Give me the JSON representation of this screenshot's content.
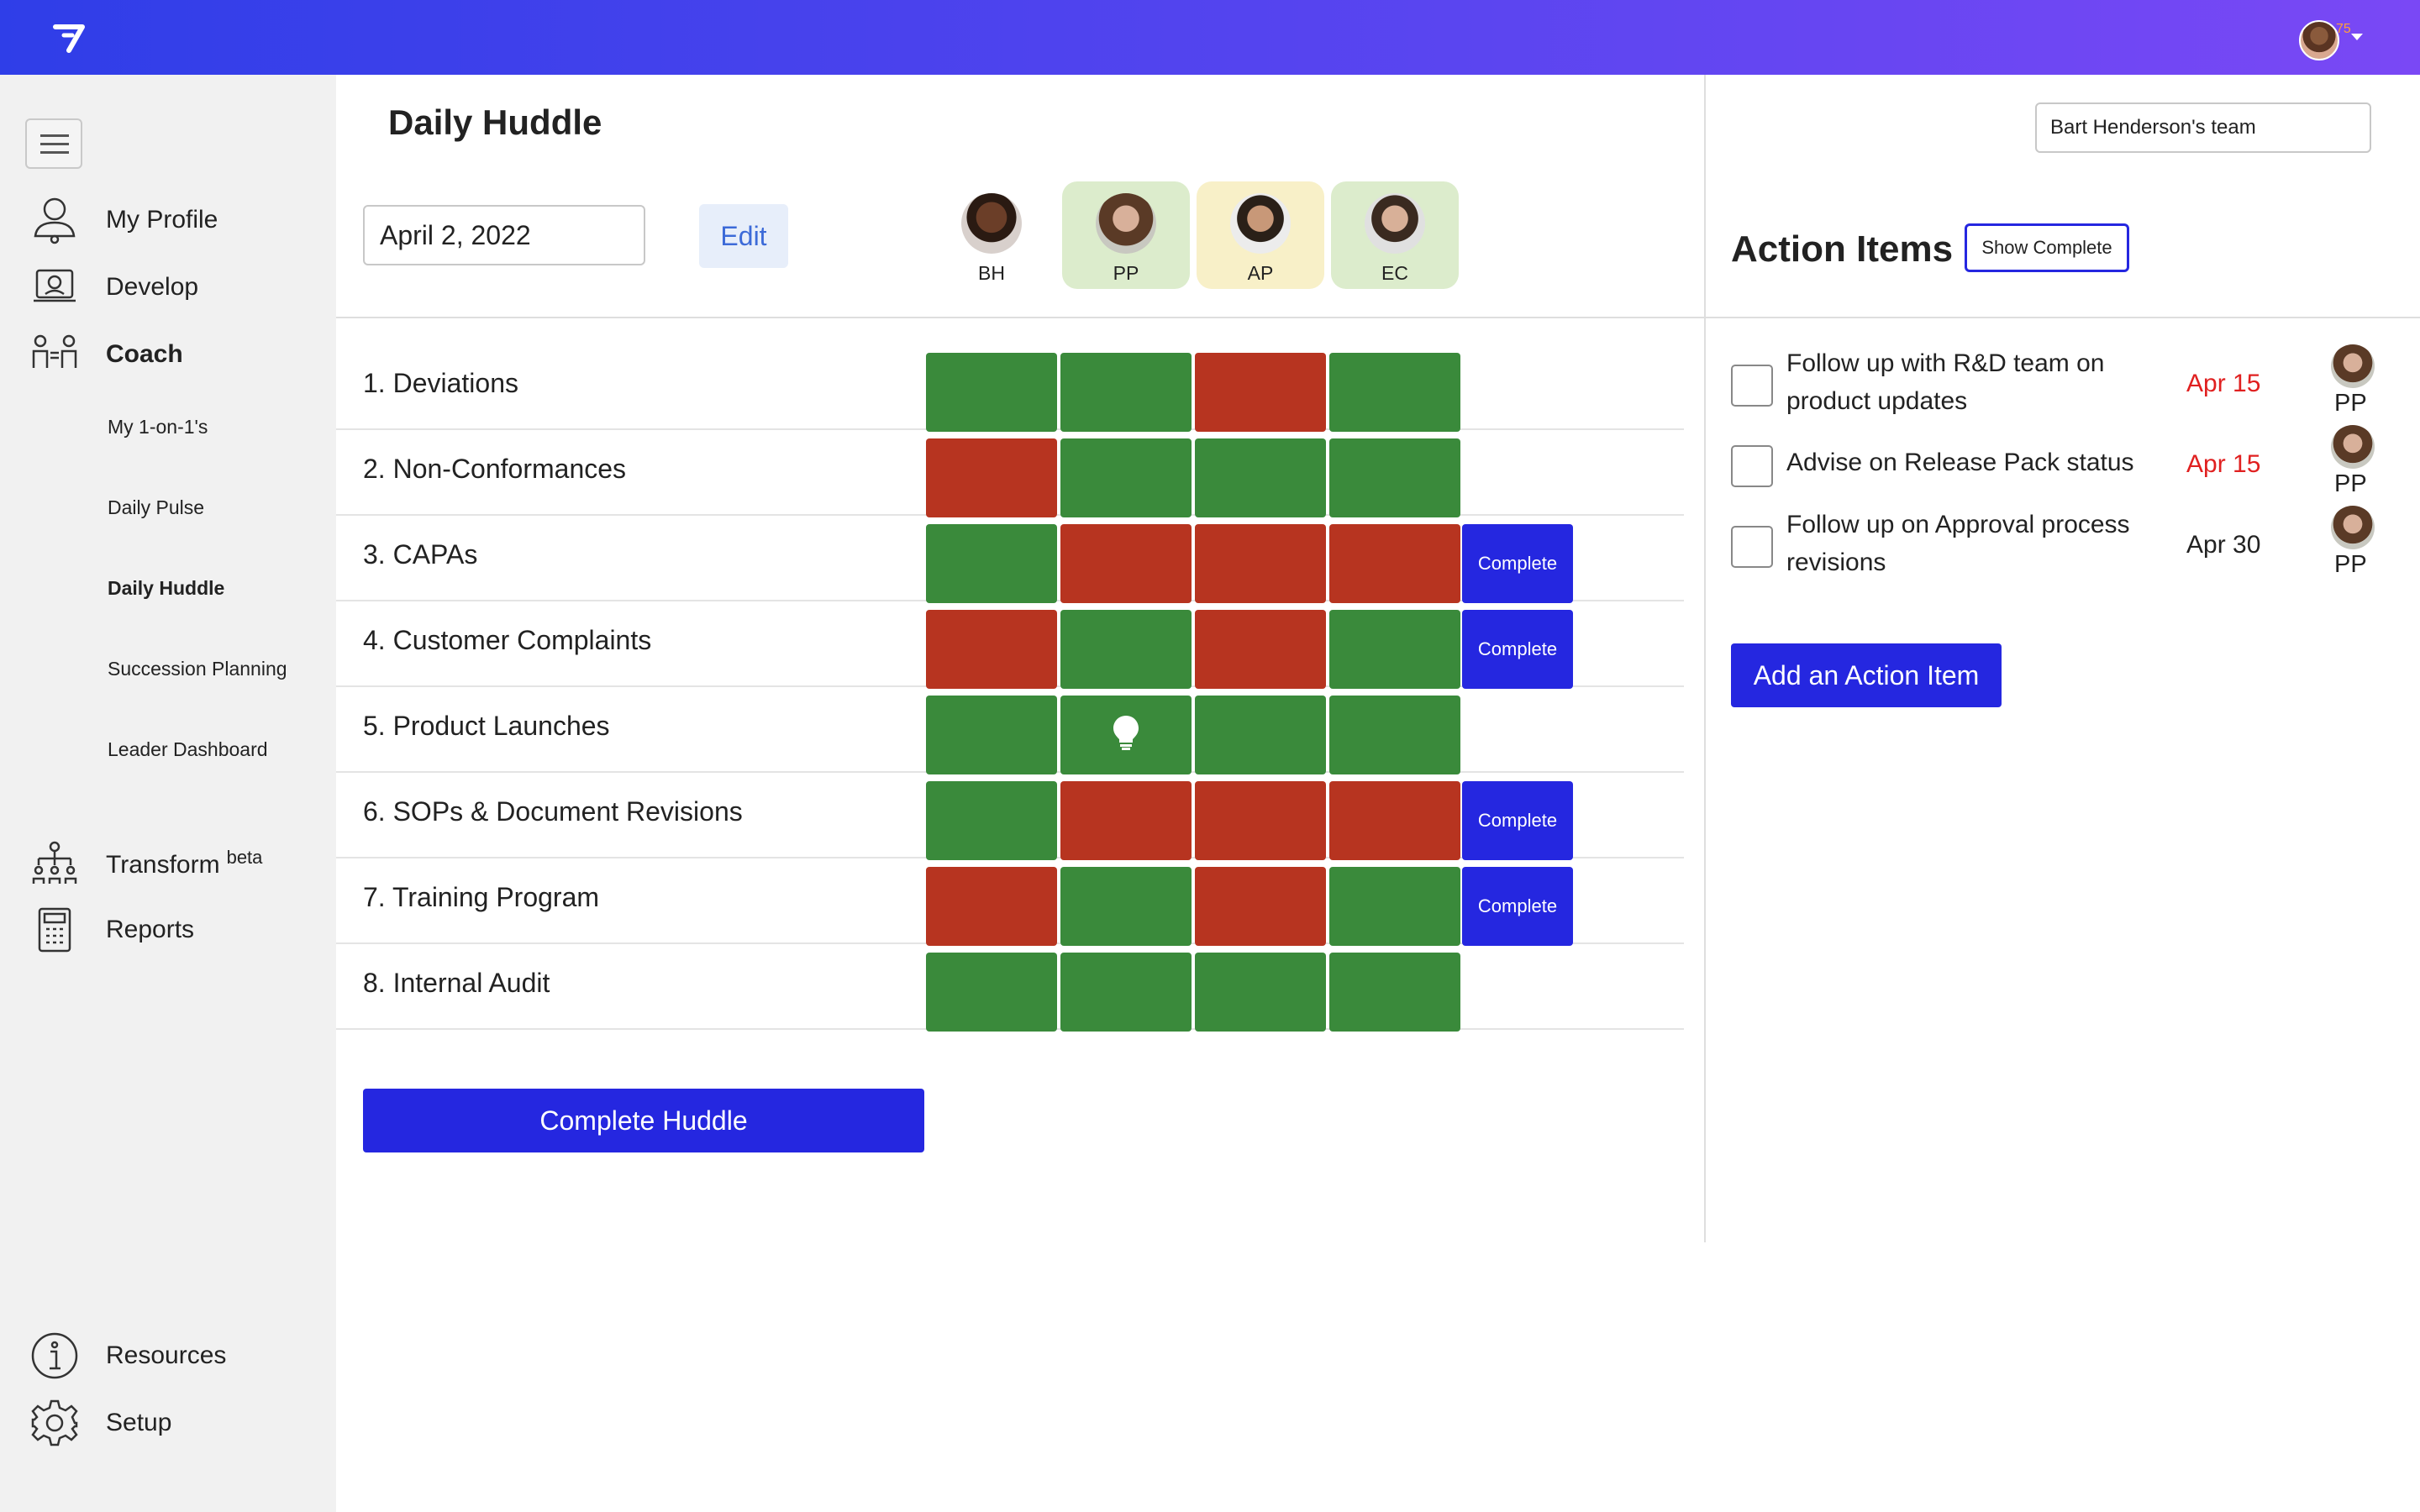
{
  "topbar": {
    "badge": "75"
  },
  "sidebar": {
    "items": [
      {
        "label": "My Profile",
        "icon": "profile-icon"
      },
      {
        "label": "Develop",
        "icon": "develop-icon"
      },
      {
        "label": "Coach",
        "icon": "coach-icon"
      }
    ],
    "coach_sub": [
      "My 1-on-1's",
      "Daily Pulse",
      "Daily Huddle",
      "Succession Planning",
      "Leader Dashboard"
    ],
    "transform": {
      "label": "Transform",
      "tag": "beta"
    },
    "reports": "Reports",
    "resources": "Resources",
    "setup": "Setup"
  },
  "main": {
    "title": "Daily Huddle",
    "date_value": "April 2, 2022",
    "edit_label": "Edit",
    "members": [
      {
        "initials": "BH",
        "highlight": "none"
      },
      {
        "initials": "PP",
        "highlight": "#dceccc"
      },
      {
        "initials": "AP",
        "highlight": "#f8f0c8"
      },
      {
        "initials": "EC",
        "highlight": "#dceccc"
      }
    ],
    "complete_tag": "Complete",
    "rows": [
      {
        "label": "1. Deviations",
        "status": [
          "green",
          "green",
          "red",
          "green"
        ],
        "complete": false
      },
      {
        "label": "2. Non-Conformances",
        "status": [
          "red",
          "green",
          "green",
          "green"
        ],
        "complete": false
      },
      {
        "label": "3. CAPAs",
        "status": [
          "green",
          "red",
          "red",
          "red"
        ],
        "complete": true
      },
      {
        "label": "4. Customer Complaints",
        "status": [
          "red",
          "green",
          "red",
          "green"
        ],
        "complete": true
      },
      {
        "label": "5. Product Launches",
        "status": [
          "green",
          "green",
          "green",
          "green"
        ],
        "complete": false,
        "idea_in": 1
      },
      {
        "label": "6. SOPs & Document Revisions",
        "status": [
          "green",
          "red",
          "red",
          "red"
        ],
        "complete": true
      },
      {
        "label": "7. Training Program",
        "status": [
          "red",
          "green",
          "red",
          "green"
        ],
        "complete": true
      },
      {
        "label": "8. Internal Audit",
        "status": [
          "green",
          "green",
          "green",
          "green"
        ],
        "complete": false
      }
    ],
    "complete_huddle_label": "Complete Huddle"
  },
  "right_panel": {
    "team_select": "Bart Henderson's team",
    "title": "Action Items",
    "show_complete_label": "Show Complete",
    "items": [
      {
        "text": "Follow up with R&D team on product updates",
        "date": "Apr 15",
        "overdue": true,
        "owner": "PP"
      },
      {
        "text": "Advise on Release Pack status",
        "date": "Apr 15",
        "overdue": true,
        "owner": "PP"
      },
      {
        "text": "Follow up on Approval process revisions",
        "date": "Apr 30",
        "overdue": false,
        "owner": "PP"
      }
    ],
    "add_label": "Add an Action Item"
  },
  "colors": {
    "accent": "#2527e0",
    "green": "#3a8a3b",
    "red": "#b73420",
    "overdue": "#e02020"
  }
}
